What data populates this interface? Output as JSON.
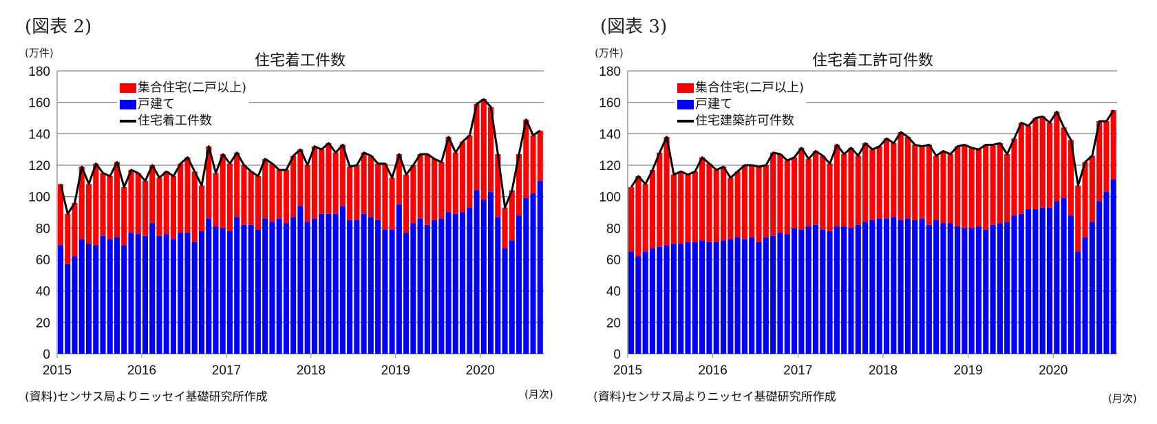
{
  "chart_data": [
    {
      "type": "bar",
      "stacked": true,
      "figure_label": "(図表 2)",
      "title": "住宅着工件数",
      "ylabel": "(万件)",
      "xlabel": "(月次)",
      "source": "(資料)センサス局よりニッセイ基礎研究所作成",
      "ylim": [
        0,
        180
      ],
      "yticks": [
        0,
        20,
        40,
        60,
        80,
        100,
        120,
        140,
        160,
        180
      ],
      "xtick_labels": [
        "2015",
        "2016",
        "2017",
        "2018",
        "2019",
        "2020"
      ],
      "x_start": "2015-01",
      "x_end": "2020-09",
      "grid": true,
      "legend_position": "top-left",
      "series": [
        {
          "name": "集合住宅(二戸以上)",
          "color": "#ff0000",
          "kind": "bar-top"
        },
        {
          "name": "戸建て",
          "color": "#0000ff",
          "kind": "bar-bottom",
          "values": [
            69,
            57,
            62,
            73,
            70,
            69,
            75,
            73,
            74,
            69,
            77,
            76,
            75,
            83,
            75,
            76,
            73,
            77,
            77,
            71,
            78,
            86,
            81,
            80,
            78,
            87,
            82,
            82,
            79,
            86,
            84,
            86,
            83,
            87,
            94,
            84,
            86,
            89,
            89,
            89,
            94,
            85,
            85,
            89,
            87,
            85,
            79,
            79,
            95,
            77,
            83,
            86,
            82,
            85,
            86,
            90,
            89,
            90,
            93,
            104,
            98,
            103,
            87,
            67,
            72,
            88,
            99,
            102,
            110
          ]
        },
        {
          "name": "住宅着工件数",
          "color": "#000000",
          "kind": "line-total",
          "values": [
            108,
            89,
            96,
            119,
            108,
            121,
            115,
            113,
            122,
            106,
            117,
            115,
            110,
            120,
            112,
            116,
            113,
            121,
            125,
            116,
            107,
            132,
            115,
            127,
            121,
            128,
            120,
            116,
            113,
            124,
            121,
            117,
            117,
            126,
            130,
            120,
            132,
            130,
            134,
            128,
            133,
            119,
            120,
            128,
            126,
            121,
            121,
            112,
            127,
            114,
            120,
            127,
            127,
            124,
            122,
            138,
            128,
            135,
            139,
            159,
            162,
            157,
            127,
            93,
            104,
            127,
            149,
            139,
            142
          ]
        }
      ]
    },
    {
      "type": "bar",
      "stacked": true,
      "figure_label": "(図表 3)",
      "title": "住宅着工許可件数",
      "ylabel": "(万件)",
      "xlabel": "(月次)",
      "source": "(資料)センサス局よりニッセイ基礎研究所作成",
      "ylim": [
        0,
        180
      ],
      "yticks": [
        0,
        20,
        40,
        60,
        80,
        100,
        120,
        140,
        160,
        180
      ],
      "xtick_labels": [
        "2015",
        "2016",
        "2017",
        "2018",
        "2019",
        "2020"
      ],
      "x_start": "2015-01",
      "x_end": "2020-09",
      "grid": true,
      "legend_position": "top-left",
      "series": [
        {
          "name": "集合住宅(二戸以上)",
          "color": "#ff0000",
          "kind": "bar-top"
        },
        {
          "name": "戸建て",
          "color": "#0000ff",
          "kind": "bar-bottom",
          "values": [
            65,
            62,
            65,
            67,
            68,
            69,
            70,
            70,
            71,
            71,
            72,
            71,
            71,
            72,
            73,
            74,
            73,
            74,
            71,
            74,
            75,
            77,
            76,
            80,
            79,
            81,
            82,
            79,
            78,
            81,
            81,
            80,
            82,
            84,
            85,
            86,
            86,
            87,
            85,
            86,
            85,
            86,
            82,
            85,
            83,
            83,
            81,
            80,
            80,
            81,
            79,
            82,
            83,
            84,
            88,
            89,
            92,
            92,
            93,
            93,
            97,
            99,
            88,
            65,
            74,
            84,
            97,
            103,
            111
          ]
        },
        {
          "name": "住宅建築許可件数",
          "color": "#000000",
          "kind": "line-total",
          "values": [
            106,
            113,
            108,
            117,
            128,
            138,
            114,
            116,
            114,
            116,
            125,
            121,
            117,
            119,
            112,
            116,
            120,
            120,
            119,
            120,
            128,
            127,
            123,
            125,
            131,
            124,
            129,
            126,
            121,
            133,
            127,
            131,
            126,
            134,
            130,
            132,
            137,
            134,
            141,
            138,
            133,
            132,
            133,
            126,
            129,
            127,
            132,
            133,
            131,
            130,
            133,
            133,
            134,
            127,
            137,
            147,
            145,
            150,
            151,
            147,
            154,
            144,
            136,
            107,
            122,
            126,
            148,
            148,
            155
          ]
        }
      ]
    }
  ]
}
